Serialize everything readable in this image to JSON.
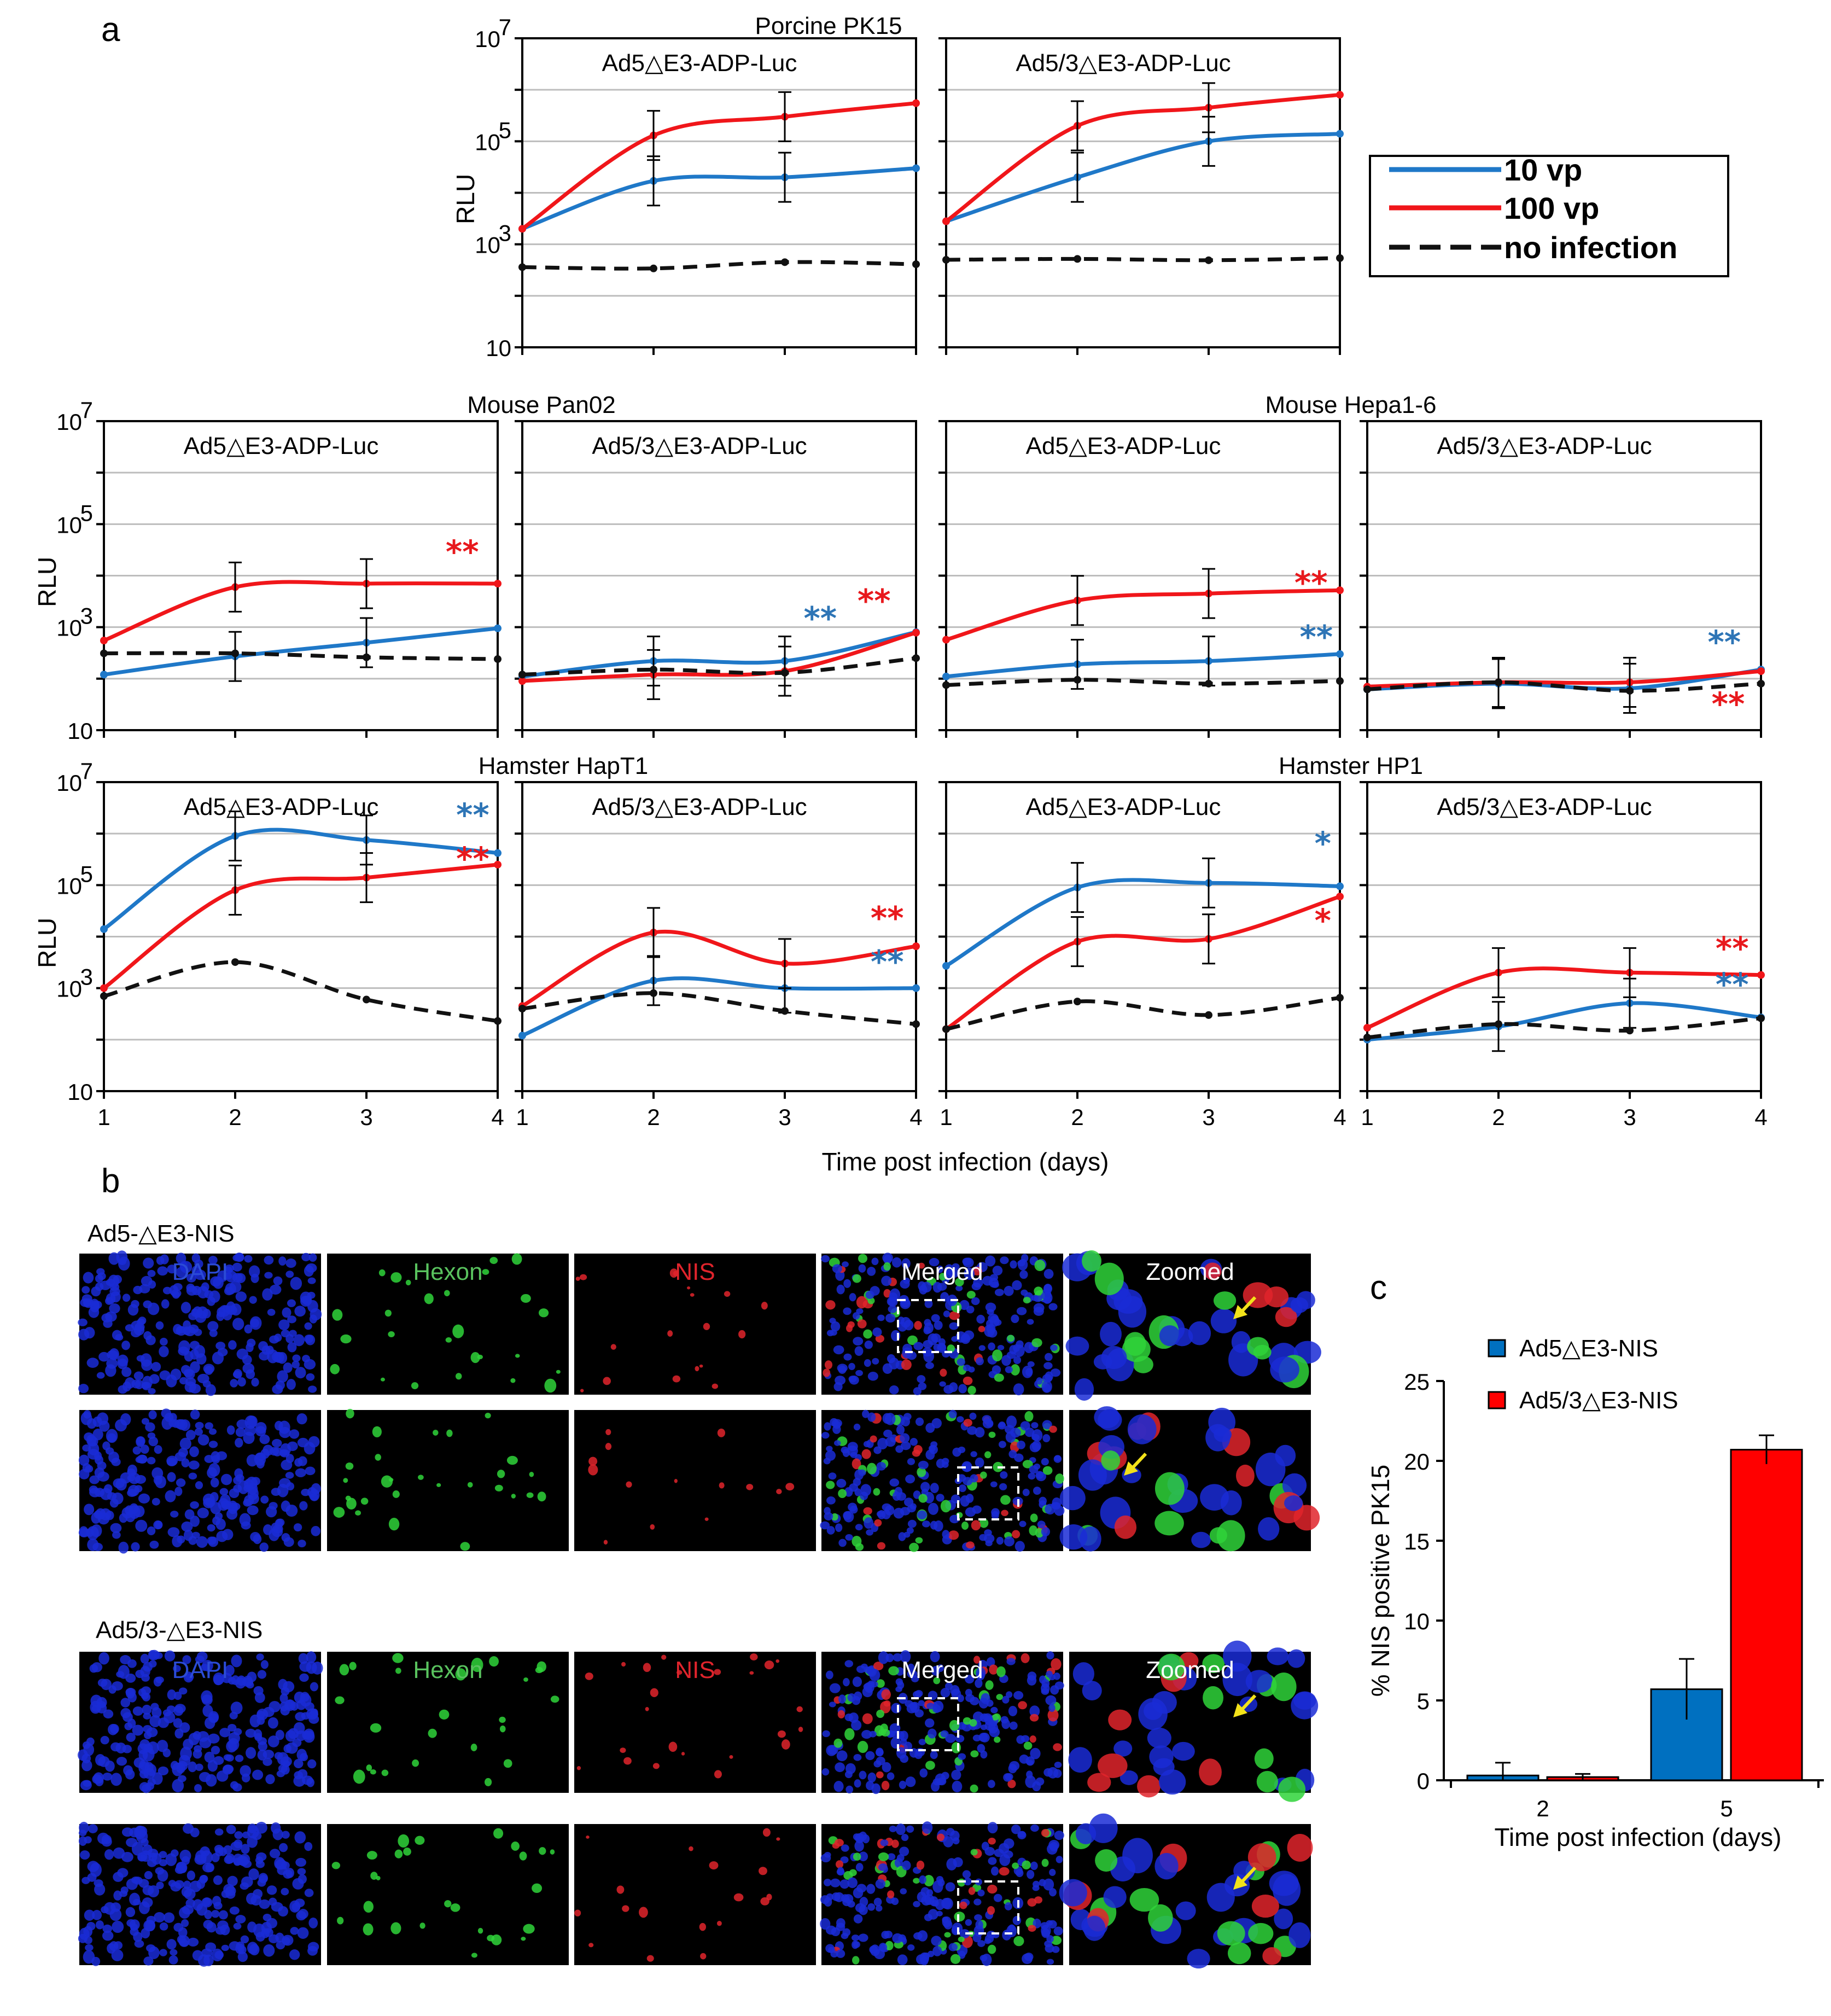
{
  "panel_labels": {
    "a": "a",
    "b": "b",
    "c": "c"
  },
  "colors": {
    "dose10": "#1f78c8",
    "dose100": "#f0161a",
    "noinf": "#111111",
    "star_blue": "#2e75b6",
    "star_red": "#e8191d",
    "bar_ad5": "#0070c0",
    "bar_ad53": "#ff0000",
    "dapi": "#1a2bd6",
    "hexon": "#2fd33a",
    "nis": "#e0242c",
    "arrow": "#f3e21a"
  },
  "legend": {
    "dose10": "10 vp",
    "dose100": "100 vp",
    "noinf": "no infection"
  },
  "panel_a": {
    "y_axis_label": "RLU",
    "x_axis_title": "Time post infection (days)",
    "y_tick_labels": [
      "10",
      "10",
      "10",
      "10"
    ],
    "y_tick_exponents": [
      "",
      "3",
      "5",
      "7"
    ],
    "x_tick_labels": [
      "1",
      "2",
      "3",
      "4"
    ],
    "groups": [
      {
        "title": "Porcine PK15"
      },
      {
        "title": "Mouse Pan02"
      },
      {
        "title": "Mouse Hepa1-6"
      },
      {
        "title": "Hamster HapT1"
      },
      {
        "title": "Hamster HP1"
      }
    ]
  },
  "chart_data": [
    {
      "type": "line",
      "group": "Porcine PK15",
      "title": "Ad5△E3-ADP-Luc",
      "x": [
        1,
        2,
        3,
        4
      ],
      "yscale": "log",
      "ylim": [
        10,
        10000000
      ],
      "series": [
        {
          "name": "10 vp",
          "values": [
            2000,
            17000,
            20000,
            30000
          ]
        },
        {
          "name": "100 vp",
          "values": [
            2000,
            130000,
            300000,
            550000
          ]
        },
        {
          "name": "no infection",
          "values": [
            360,
            340,
            450,
            410
          ]
        }
      ],
      "stars": []
    },
    {
      "type": "line",
      "group": "Porcine PK15",
      "title": "Ad5/3△E3-ADP-Luc",
      "x": [
        1,
        2,
        3,
        4
      ],
      "yscale": "log",
      "ylim": [
        10,
        10000000
      ],
      "series": [
        {
          "name": "10 vp",
          "values": [
            2800,
            20000,
            100000,
            140000
          ]
        },
        {
          "name": "100 vp",
          "values": [
            2800,
            200000,
            450000,
            800000
          ]
        },
        {
          "name": "no infection",
          "values": [
            500,
            520,
            490,
            540
          ]
        }
      ],
      "stars": []
    },
    {
      "type": "line",
      "group": "Mouse Pan02",
      "title": "Ad5△E3-ADP-Luc",
      "x": [
        1,
        2,
        3,
        4
      ],
      "yscale": "log",
      "ylim": [
        10,
        10000000
      ],
      "series": [
        {
          "name": "10 vp",
          "values": [
            120,
            270,
            500,
            950
          ]
        },
        {
          "name": "100 vp",
          "values": [
            550,
            6000,
            7000,
            7000
          ]
        },
        {
          "name": "no infection",
          "values": [
            310,
            310,
            260,
            240
          ]
        }
      ],
      "stars": [
        {
          "text": "**",
          "color": "red",
          "x": 3.73,
          "logy": 4.25
        }
      ]
    },
    {
      "type": "line",
      "group": "Mouse Pan02",
      "title": "Ad5/3△E3-ADP-Luc",
      "x": [
        1,
        2,
        3,
        4
      ],
      "yscale": "log",
      "ylim": [
        10,
        10000000
      ],
      "series": [
        {
          "name": "10 vp",
          "values": [
            110,
            220,
            220,
            800
          ]
        },
        {
          "name": "100 vp",
          "values": [
            90,
            120,
            140,
            780
          ]
        },
        {
          "name": "no infection",
          "values": [
            120,
            150,
            130,
            250
          ]
        }
      ],
      "stars": [
        {
          "text": "**",
          "color": "blue",
          "x": 3.27,
          "logy": 2.96
        },
        {
          "text": "**",
          "color": "red",
          "x": 3.68,
          "logy": 3.3
        }
      ]
    },
    {
      "type": "line",
      "group": "Mouse Hepa1-6",
      "title": "Ad5△E3-ADP-Luc",
      "x": [
        1,
        2,
        3,
        4
      ],
      "yscale": "log",
      "ylim": [
        10,
        10000000
      ],
      "series": [
        {
          "name": "10 vp",
          "values": [
            110,
            190,
            220,
            300
          ]
        },
        {
          "name": "100 vp",
          "values": [
            570,
            3300,
            4500,
            5200
          ]
        },
        {
          "name": "no infection",
          "values": [
            75,
            95,
            80,
            90
          ]
        }
      ],
      "stars": [
        {
          "text": "**",
          "color": "red",
          "x": 3.78,
          "logy": 3.65
        },
        {
          "text": "**",
          "color": "blue",
          "x": 3.82,
          "logy": 2.6
        }
      ]
    },
    {
      "type": "line",
      "group": "Mouse Hepa1-6",
      "title": "Ad5/3△E3-ADP-Luc",
      "x": [
        1,
        2,
        3,
        4
      ],
      "yscale": "log",
      "ylim": [
        10,
        10000000
      ],
      "series": [
        {
          "name": "10 vp",
          "values": [
            62,
            80,
            65,
            150
          ]
        },
        {
          "name": "100 vp",
          "values": [
            70,
            85,
            85,
            140
          ]
        },
        {
          "name": "no infection",
          "values": [
            62,
            85,
            58,
            80
          ]
        }
      ],
      "stars": [
        {
          "text": "**",
          "color": "blue",
          "x": 3.72,
          "logy": 2.5
        },
        {
          "text": "**",
          "color": "red",
          "x": 3.75,
          "logy": 1.3
        }
      ]
    },
    {
      "type": "line",
      "group": "Hamster HapT1",
      "title": "Ad5△E3-ADP-Luc",
      "x": [
        1,
        2,
        3,
        4
      ],
      "yscale": "log",
      "ylim": [
        10,
        10000000
      ],
      "series": [
        {
          "name": "10 vp",
          "values": [
            14000,
            900000,
            750000,
            420000
          ]
        },
        {
          "name": "100 vp",
          "values": [
            1000,
            80000,
            140000,
            250000
          ]
        },
        {
          "name": "no infection",
          "values": [
            700,
            3200,
            600,
            230
          ]
        }
      ],
      "stars": [
        {
          "text": "**",
          "color": "blue",
          "x": 3.81,
          "logy": 6.15
        },
        {
          "text": "**",
          "color": "red",
          "x": 3.81,
          "logy": 5.3
        }
      ]
    },
    {
      "type": "line",
      "group": "Hamster HapT1",
      "title": "Ad5/3△E3-ADP-Luc",
      "x": [
        1,
        2,
        3,
        4
      ],
      "yscale": "log",
      "ylim": [
        10,
        10000000
      ],
      "series": [
        {
          "name": "10 vp",
          "values": [
            120,
            1400,
            1000,
            1000
          ]
        },
        {
          "name": "100 vp",
          "values": [
            450,
            12000,
            3000,
            6500
          ]
        },
        {
          "name": "no infection",
          "values": [
            400,
            800,
            360,
            200
          ]
        }
      ],
      "stars": [
        {
          "text": "**",
          "color": "red",
          "x": 3.78,
          "logy": 4.15
        },
        {
          "text": "**",
          "color": "blue",
          "x": 3.78,
          "logy": 3.3
        }
      ]
    },
    {
      "type": "line",
      "group": "Hamster HP1",
      "title": "Ad5△E3-ADP-Luc",
      "x": [
        1,
        2,
        3,
        4
      ],
      "yscale": "log",
      "ylim": [
        10,
        10000000
      ],
      "series": [
        {
          "name": "10 vp",
          "values": [
            2700,
            90000,
            110000,
            95000
          ]
        },
        {
          "name": "100 vp",
          "values": [
            160,
            8000,
            9000,
            60000
          ]
        },
        {
          "name": "no infection",
          "values": [
            160,
            550,
            300,
            650
          ]
        }
      ],
      "stars": [
        {
          "text": "*",
          "color": "blue",
          "x": 3.87,
          "logy": 5.6
        },
        {
          "text": "*",
          "color": "red",
          "x": 3.87,
          "logy": 4.1
        }
      ]
    },
    {
      "type": "line",
      "group": "Hamster HP1",
      "title": "Ad5/3△E3-ADP-Luc",
      "x": [
        1,
        2,
        3,
        4
      ],
      "yscale": "log",
      "ylim": [
        10,
        10000000
      ],
      "series": [
        {
          "name": "10 vp",
          "values": [
            100,
            180,
            510,
            270
          ]
        },
        {
          "name": "100 vp",
          "values": [
            170,
            2000,
            2000,
            1800
          ]
        },
        {
          "name": "no infection",
          "values": [
            110,
            200,
            150,
            260
          ]
        }
      ],
      "stars": [
        {
          "text": "**",
          "color": "red",
          "x": 3.78,
          "logy": 3.56
        },
        {
          "text": "**",
          "color": "blue",
          "x": 3.78,
          "logy": 2.86
        }
      ]
    },
    {
      "type": "bar",
      "title": "",
      "categories": [
        "2",
        "5"
      ],
      "series": [
        {
          "name": "Ad5△E3-NIS",
          "values": [
            0.3,
            5.7
          ],
          "errors": [
            0.8,
            1.9
          ]
        },
        {
          "name": "Ad5/3△E3-NIS",
          "values": [
            0.2,
            20.7
          ],
          "errors": [
            0.2,
            0.9
          ]
        }
      ],
      "xlabel": "Time post infection (days)",
      "ylabel": "% NIS positive PK15",
      "ylim": [
        0,
        25
      ],
      "yticks": [
        "0",
        "5",
        "10",
        "15",
        "20",
        "25"
      ]
    }
  ],
  "panel_b": {
    "row_group_labels": [
      "Ad5-△E3-NIS",
      "Ad5/3-△E3-NIS"
    ],
    "column_labels": {
      "dapi": "DAPI",
      "hexon": "Hexon",
      "nis": "NIS",
      "merged": "Merged",
      "zoomed": "Zoomed"
    }
  }
}
